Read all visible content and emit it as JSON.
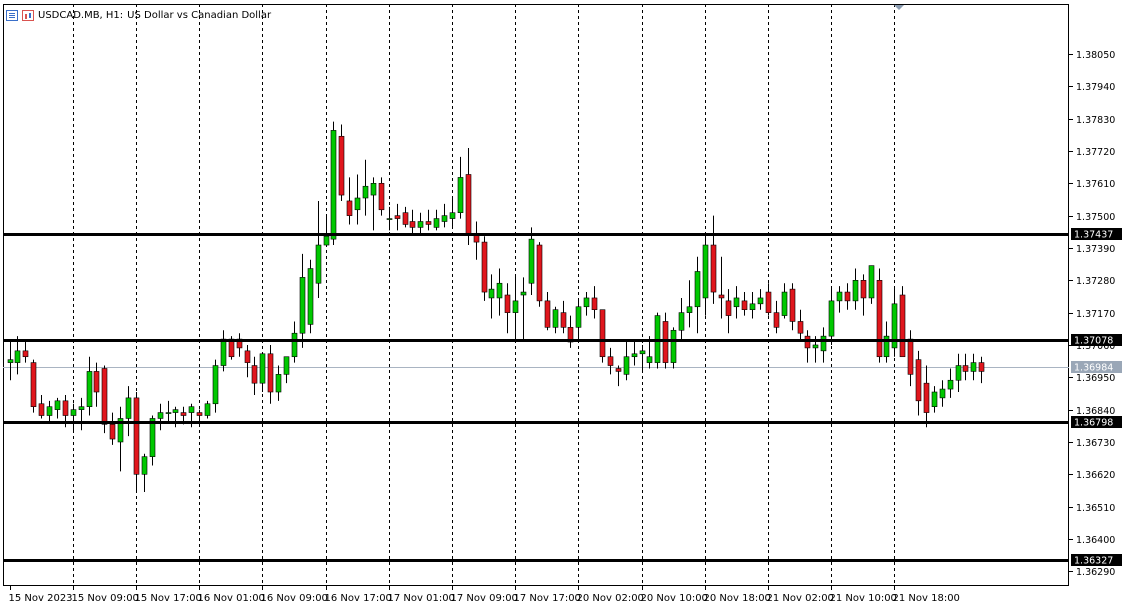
{
  "header": {
    "symbol_label": "USDCAD.MB, H1:",
    "description": "US Dollar vs Canadian Dollar",
    "left_icon": "chart-window-icon",
    "right_icon": "chart-props-icon"
  },
  "colors": {
    "background": "#ffffff",
    "bull": "#00c800",
    "bear": "#e0161d",
    "wick": "#000000",
    "grid": "#000000",
    "level_line": "#000000",
    "bid_line": "#a9b4c2",
    "label_bg": "#000000",
    "label_text": "#ffffff",
    "bid_label_bg": "#9aa7b7"
  },
  "chart_data": {
    "type": "candlestick",
    "symbol": "USDCAD.MB",
    "timeframe": "H1",
    "title": "US Dollar vs Canadian Dollar",
    "ylim": [
      1.3624,
      1.3822
    ],
    "yticks": [
      "1.38050",
      "1.37940",
      "1.37830",
      "1.37720",
      "1.37610",
      "1.37500",
      "1.37390",
      "1.37280",
      "1.37170",
      "1.37060",
      "1.36950",
      "1.36840",
      "1.36730",
      "1.36620",
      "1.36510",
      "1.36400",
      "1.36290"
    ],
    "xticks": [
      "15 Nov 2023",
      "15 Nov 09:00",
      "15 Nov 17:00",
      "16 Nov 01:00",
      "16 Nov 09:00",
      "16 Nov 17:00",
      "17 Nov 01:00",
      "17 Nov 09:00",
      "17 Nov 17:00",
      "20 Nov 02:00",
      "20 Nov 10:00",
      "20 Nov 18:00",
      "21 Nov 02:00",
      "21 Nov 10:00",
      "21 Nov 18:00"
    ],
    "grid": "vertical-dotted-at-session-starts",
    "horizontal_levels": [
      {
        "price": 1.37437,
        "label": "1.37437"
      },
      {
        "price": 1.37078,
        "label": "1.37078"
      },
      {
        "price": 1.36798,
        "label": "1.36798"
      },
      {
        "price": 1.36327,
        "label": "1.36327"
      }
    ],
    "bid": {
      "price": 1.36984,
      "label": "1.36984"
    },
    "candles": [
      {
        "o": 1.37,
        "h": 1.3708,
        "l": 1.3694,
        "c": 1.3701
      },
      {
        "o": 1.37,
        "h": 1.3709,
        "l": 1.3696,
        "c": 1.3704
      },
      {
        "o": 1.3704,
        "h": 1.3708,
        "l": 1.37,
        "c": 1.3702
      },
      {
        "o": 1.37,
        "h": 1.3701,
        "l": 1.3683,
        "c": 1.3685
      },
      {
        "o": 1.3686,
        "h": 1.3689,
        "l": 1.3681,
        "c": 1.3682
      },
      {
        "o": 1.3682,
        "h": 1.3687,
        "l": 1.368,
        "c": 1.3685
      },
      {
        "o": 1.3684,
        "h": 1.3688,
        "l": 1.3681,
        "c": 1.3687
      },
      {
        "o": 1.3687,
        "h": 1.3689,
        "l": 1.3678,
        "c": 1.3682
      },
      {
        "o": 1.3682,
        "h": 1.3686,
        "l": 1.3677,
        "c": 1.3684
      },
      {
        "o": 1.3684,
        "h": 1.3688,
        "l": 1.3677,
        "c": 1.3685
      },
      {
        "o": 1.3685,
        "h": 1.3702,
        "l": 1.3682,
        "c": 1.3697
      },
      {
        "o": 1.3697,
        "h": 1.37,
        "l": 1.3685,
        "c": 1.369
      },
      {
        "o": 1.3698,
        "h": 1.3699,
        "l": 1.3676,
        "c": 1.3679
      },
      {
        "o": 1.3679,
        "h": 1.3683,
        "l": 1.3672,
        "c": 1.3674
      },
      {
        "o": 1.3673,
        "h": 1.3685,
        "l": 1.3663,
        "c": 1.3681
      },
      {
        "o": 1.3681,
        "h": 1.3692,
        "l": 1.3675,
        "c": 1.3688
      },
      {
        "o": 1.3688,
        "h": 1.369,
        "l": 1.3656,
        "c": 1.3662
      },
      {
        "o": 1.3662,
        "h": 1.3669,
        "l": 1.3656,
        "c": 1.3668
      },
      {
        "o": 1.3668,
        "h": 1.3682,
        "l": 1.3665,
        "c": 1.3681
      },
      {
        "o": 1.3681,
        "h": 1.3686,
        "l": 1.3677,
        "c": 1.3683
      },
      {
        "o": 1.3683,
        "h": 1.3687,
        "l": 1.368,
        "c": 1.3683
      },
      {
        "o": 1.3683,
        "h": 1.3685,
        "l": 1.3678,
        "c": 1.3684
      },
      {
        "o": 1.3683,
        "h": 1.3685,
        "l": 1.3679,
        "c": 1.3682
      },
      {
        "o": 1.3683,
        "h": 1.3686,
        "l": 1.3678,
        "c": 1.3685
      },
      {
        "o": 1.3683,
        "h": 1.3684,
        "l": 1.368,
        "c": 1.3682
      },
      {
        "o": 1.3682,
        "h": 1.3687,
        "l": 1.3681,
        "c": 1.3686
      },
      {
        "o": 1.3686,
        "h": 1.3701,
        "l": 1.3683,
        "c": 1.3699
      },
      {
        "o": 1.3699,
        "h": 1.3711,
        "l": 1.3697,
        "c": 1.3708
      },
      {
        "o": 1.3708,
        "h": 1.3709,
        "l": 1.3701,
        "c": 1.3702
      },
      {
        "o": 1.3708,
        "h": 1.371,
        "l": 1.3702,
        "c": 1.3705
      },
      {
        "o": 1.3704,
        "h": 1.3706,
        "l": 1.3695,
        "c": 1.37
      },
      {
        "o": 1.3699,
        "h": 1.3702,
        "l": 1.3689,
        "c": 1.3693
      },
      {
        "o": 1.3693,
        "h": 1.3703,
        "l": 1.369,
        "c": 1.3703
      },
      {
        "o": 1.3703,
        "h": 1.3706,
        "l": 1.3686,
        "c": 1.369
      },
      {
        "o": 1.369,
        "h": 1.3699,
        "l": 1.3687,
        "c": 1.3696
      },
      {
        "o": 1.3696,
        "h": 1.3702,
        "l": 1.3693,
        "c": 1.3702
      },
      {
        "o": 1.3702,
        "h": 1.3714,
        "l": 1.37,
        "c": 1.371
      },
      {
        "o": 1.371,
        "h": 1.3737,
        "l": 1.3705,
        "c": 1.3729
      },
      {
        "o": 1.3713,
        "h": 1.3735,
        "l": 1.371,
        "c": 1.3732
      },
      {
        "o": 1.3727,
        "h": 1.3755,
        "l": 1.3722,
        "c": 1.374
      },
      {
        "o": 1.374,
        "h": 1.375,
        "l": 1.374,
        "c": 1.3743
      },
      {
        "o": 1.3742,
        "h": 1.3782,
        "l": 1.374,
        "c": 1.3779
      },
      {
        "o": 1.3777,
        "h": 1.3781,
        "l": 1.3755,
        "c": 1.3757
      },
      {
        "o": 1.3755,
        "h": 1.3763,
        "l": 1.3747,
        "c": 1.375
      },
      {
        "o": 1.3752,
        "h": 1.3764,
        "l": 1.3747,
        "c": 1.3756
      },
      {
        "o": 1.3756,
        "h": 1.3769,
        "l": 1.375,
        "c": 1.376
      },
      {
        "o": 1.3757,
        "h": 1.3763,
        "l": 1.3745,
        "c": 1.3761
      },
      {
        "o": 1.3761,
        "h": 1.3763,
        "l": 1.375,
        "c": 1.3752
      },
      {
        "o": 1.3749,
        "h": 1.3753,
        "l": 1.3745,
        "c": 1.3749
      },
      {
        "o": 1.375,
        "h": 1.3754,
        "l": 1.3745,
        "c": 1.3749
      },
      {
        "o": 1.3751,
        "h": 1.3753,
        "l": 1.3746,
        "c": 1.3747
      },
      {
        "o": 1.3748,
        "h": 1.3752,
        "l": 1.3744,
        "c": 1.3746
      },
      {
        "o": 1.3746,
        "h": 1.3751,
        "l": 1.3744,
        "c": 1.3748
      },
      {
        "o": 1.3748,
        "h": 1.3752,
        "l": 1.3745,
        "c": 1.3747
      },
      {
        "o": 1.3746,
        "h": 1.3752,
        "l": 1.3745,
        "c": 1.3749
      },
      {
        "o": 1.3748,
        "h": 1.3754,
        "l": 1.3746,
        "c": 1.375
      },
      {
        "o": 1.3749,
        "h": 1.3756,
        "l": 1.3746,
        "c": 1.3751
      },
      {
        "o": 1.3751,
        "h": 1.377,
        "l": 1.3749,
        "c": 1.3763
      },
      {
        "o": 1.3764,
        "h": 1.3773,
        "l": 1.374,
        "c": 1.3744
      },
      {
        "o": 1.3744,
        "h": 1.3748,
        "l": 1.3735,
        "c": 1.3741
      },
      {
        "o": 1.3741,
        "h": 1.3743,
        "l": 1.3721,
        "c": 1.3724
      },
      {
        "o": 1.3722,
        "h": 1.373,
        "l": 1.3715,
        "c": 1.3725
      },
      {
        "o": 1.3722,
        "h": 1.3732,
        "l": 1.3716,
        "c": 1.3727
      },
      {
        "o": 1.3723,
        "h": 1.3727,
        "l": 1.371,
        "c": 1.3717
      },
      {
        "o": 1.3717,
        "h": 1.373,
        "l": 1.3707,
        "c": 1.3721
      },
      {
        "o": 1.3723,
        "h": 1.3729,
        "l": 1.3708,
        "c": 1.3724
      },
      {
        "o": 1.3727,
        "h": 1.3746,
        "l": 1.3723,
        "c": 1.3742
      },
      {
        "o": 1.374,
        "h": 1.3741,
        "l": 1.3719,
        "c": 1.3721
      },
      {
        "o": 1.3721,
        "h": 1.3724,
        "l": 1.3711,
        "c": 1.3712
      },
      {
        "o": 1.3712,
        "h": 1.3719,
        "l": 1.371,
        "c": 1.3718
      },
      {
        "o": 1.3717,
        "h": 1.3721,
        "l": 1.371,
        "c": 1.3712
      },
      {
        "o": 1.3712,
        "h": 1.3716,
        "l": 1.3705,
        "c": 1.3707
      },
      {
        "o": 1.3712,
        "h": 1.3721,
        "l": 1.3708,
        "c": 1.3719
      },
      {
        "o": 1.3719,
        "h": 1.3724,
        "l": 1.3716,
        "c": 1.3722
      },
      {
        "o": 1.3722,
        "h": 1.3726,
        "l": 1.3715,
        "c": 1.3718
      },
      {
        "o": 1.3718,
        "h": 1.3718,
        "l": 1.37,
        "c": 1.3702
      },
      {
        "o": 1.3702,
        "h": 1.3705,
        "l": 1.3696,
        "c": 1.3699
      },
      {
        "o": 1.3698,
        "h": 1.3699,
        "l": 1.3692,
        "c": 1.3697
      },
      {
        "o": 1.3696,
        "h": 1.3707,
        "l": 1.3694,
        "c": 1.3702
      },
      {
        "o": 1.3702,
        "h": 1.3707,
        "l": 1.3699,
        "c": 1.3703
      },
      {
        "o": 1.3703,
        "h": 1.3706,
        "l": 1.3697,
        "c": 1.3704
      },
      {
        "o": 1.37,
        "h": 1.3709,
        "l": 1.3698,
        "c": 1.3702
      },
      {
        "o": 1.37,
        "h": 1.3717,
        "l": 1.3698,
        "c": 1.3716
      },
      {
        "o": 1.3714,
        "h": 1.3717,
        "l": 1.3698,
        "c": 1.37
      },
      {
        "o": 1.37,
        "h": 1.3712,
        "l": 1.3698,
        "c": 1.3711
      },
      {
        "o": 1.3711,
        "h": 1.3722,
        "l": 1.3708,
        "c": 1.3717
      },
      {
        "o": 1.3717,
        "h": 1.3728,
        "l": 1.3712,
        "c": 1.3719
      },
      {
        "o": 1.3719,
        "h": 1.3736,
        "l": 1.371,
        "c": 1.3731
      },
      {
        "o": 1.3722,
        "h": 1.3744,
        "l": 1.3716,
        "c": 1.374
      },
      {
        "o": 1.374,
        "h": 1.375,
        "l": 1.372,
        "c": 1.3724
      },
      {
        "o": 1.3723,
        "h": 1.3736,
        "l": 1.3715,
        "c": 1.3722
      },
      {
        "o": 1.3721,
        "h": 1.3725,
        "l": 1.371,
        "c": 1.3716
      },
      {
        "o": 1.3719,
        "h": 1.3726,
        "l": 1.3715,
        "c": 1.3722
      },
      {
        "o": 1.3721,
        "h": 1.3724,
        "l": 1.3716,
        "c": 1.3718
      },
      {
        "o": 1.3718,
        "h": 1.3724,
        "l": 1.3715,
        "c": 1.372
      },
      {
        "o": 1.372,
        "h": 1.3725,
        "l": 1.3718,
        "c": 1.3722
      },
      {
        "o": 1.3724,
        "h": 1.3727,
        "l": 1.3716,
        "c": 1.3717
      },
      {
        "o": 1.3717,
        "h": 1.3721,
        "l": 1.371,
        "c": 1.3712
      },
      {
        "o": 1.3716,
        "h": 1.3727,
        "l": 1.3715,
        "c": 1.3724
      },
      {
        "o": 1.3725,
        "h": 1.3727,
        "l": 1.3711,
        "c": 1.3714
      },
      {
        "o": 1.3714,
        "h": 1.3718,
        "l": 1.3707,
        "c": 1.371
      },
      {
        "o": 1.3709,
        "h": 1.3711,
        "l": 1.37,
        "c": 1.3705
      },
      {
        "o": 1.3705,
        "h": 1.3709,
        "l": 1.37,
        "c": 1.3706
      },
      {
        "o": 1.3704,
        "h": 1.3712,
        "l": 1.37,
        "c": 1.3709
      },
      {
        "o": 1.3709,
        "h": 1.3726,
        "l": 1.3706,
        "c": 1.3721
      },
      {
        "o": 1.3721,
        "h": 1.3726,
        "l": 1.3717,
        "c": 1.3724
      },
      {
        "o": 1.3724,
        "h": 1.3727,
        "l": 1.3718,
        "c": 1.3721
      },
      {
        "o": 1.3721,
        "h": 1.3732,
        "l": 1.3718,
        "c": 1.3728
      },
      {
        "o": 1.3728,
        "h": 1.373,
        "l": 1.3716,
        "c": 1.3722
      },
      {
        "o": 1.3722,
        "h": 1.3733,
        "l": 1.372,
        "c": 1.3733
      },
      {
        "o": 1.3728,
        "h": 1.3732,
        "l": 1.37,
        "c": 1.3702
      },
      {
        "o": 1.3702,
        "h": 1.3714,
        "l": 1.37,
        "c": 1.3709
      },
      {
        "o": 1.3705,
        "h": 1.3726,
        "l": 1.3702,
        "c": 1.372
      },
      {
        "o": 1.3723,
        "h": 1.3726,
        "l": 1.3702,
        "c": 1.3702
      },
      {
        "o": 1.3708,
        "h": 1.3711,
        "l": 1.3692,
        "c": 1.3696
      },
      {
        "o": 1.3701,
        "h": 1.3704,
        "l": 1.3682,
        "c": 1.3687
      },
      {
        "o": 1.3693,
        "h": 1.3699,
        "l": 1.3678,
        "c": 1.3683
      },
      {
        "o": 1.3685,
        "h": 1.3692,
        "l": 1.3683,
        "c": 1.369
      },
      {
        "o": 1.3688,
        "h": 1.3694,
        "l": 1.3685,
        "c": 1.3691
      },
      {
        "o": 1.3691,
        "h": 1.3698,
        "l": 1.3688,
        "c": 1.3694
      },
      {
        "o": 1.3694,
        "h": 1.3703,
        "l": 1.369,
        "c": 1.3699
      },
      {
        "o": 1.3699,
        "h": 1.3703,
        "l": 1.3694,
        "c": 1.3697
      },
      {
        "o": 1.3697,
        "h": 1.3703,
        "l": 1.3694,
        "c": 1.37
      },
      {
        "o": 1.37,
        "h": 1.3702,
        "l": 1.3693,
        "c": 1.3697
      }
    ]
  }
}
